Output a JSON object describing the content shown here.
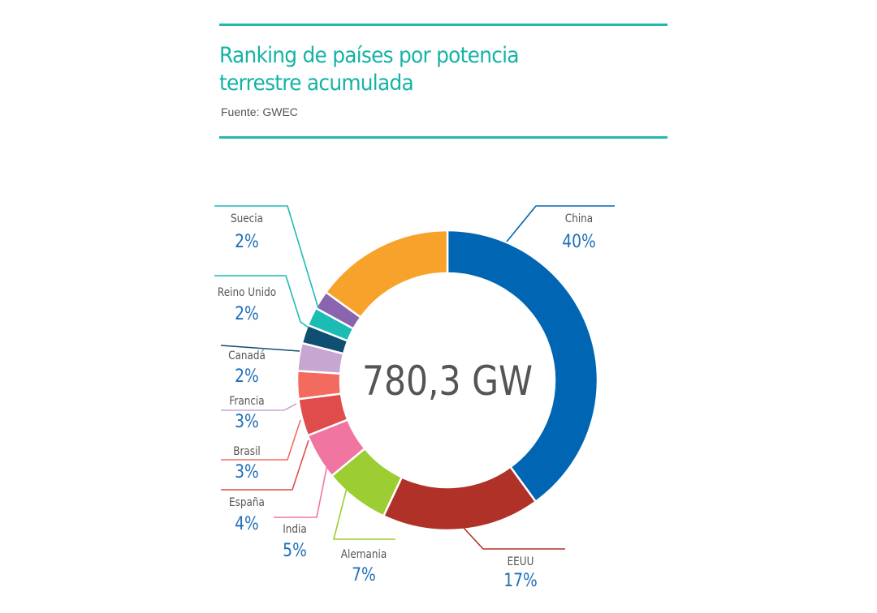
{
  "header": {
    "title_line1": "Ranking de países por potencia",
    "title_line2": "terrestre acumulada",
    "source": "Fuente: GWEC"
  },
  "chart_data": {
    "type": "pie",
    "center_label": "780,3 GW",
    "categories": [
      "China",
      "EEUU",
      "Alemania",
      "India",
      "España",
      "Brasil",
      "Francia",
      "Canadá",
      "Reino Unido",
      "Suecia",
      ""
    ],
    "values": [
      40,
      17,
      7,
      5,
      4,
      3,
      3,
      2,
      2,
      2,
      15
    ],
    "percent_labels": [
      "40%",
      "17%",
      "7%",
      "5%",
      "4%",
      "3%",
      "3%",
      "2%",
      "2%",
      "2%",
      ""
    ],
    "colors": [
      "#0066b3",
      "#b03127",
      "#9ccd33",
      "#f075a1",
      "#e04c4c",
      "#f36a5f",
      "#c8a6d2",
      "#0e4f72",
      "#1bbcb4",
      "#8a64ae",
      "#f7a32b"
    ],
    "line_colors": [
      "#0066b3",
      "#b03127",
      "#9ccd33",
      "#f075a1",
      "#e04c4c",
      "#f36a5f",
      "#c8a6d2",
      "#0e4f72",
      "#1bbcb4",
      "#1bbcb4",
      ""
    ]
  }
}
